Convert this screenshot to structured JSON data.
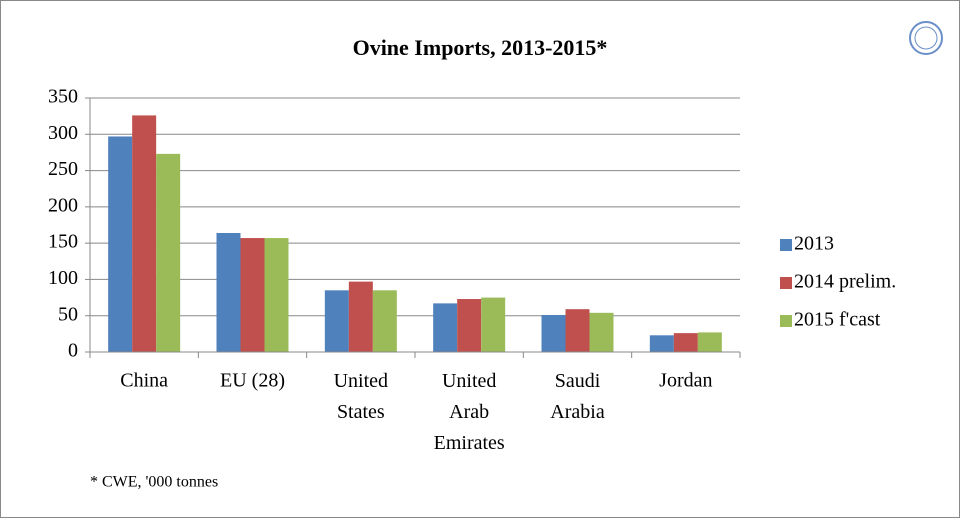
{
  "chart_data": {
    "type": "bar",
    "title": "Ovine Imports, 2013-2015*",
    "categories": [
      "China",
      "EU (28)",
      "United States",
      "United Arab Emirates",
      "Saudi Arabia",
      "Jordan"
    ],
    "series": [
      {
        "name": "2013",
        "color": "#4f81bd",
        "values": [
          297,
          164,
          85,
          67,
          51,
          23
        ]
      },
      {
        "name": "2014 prelim.",
        "color": "#c0504d",
        "values": [
          326,
          157,
          97,
          73,
          59,
          26
        ]
      },
      {
        "name": "2015 f'cast",
        "color": "#9bbb59",
        "values": [
          273,
          157,
          85,
          75,
          54,
          27
        ]
      }
    ],
    "ylim": [
      0,
      350
    ],
    "yticks": [
      0,
      50,
      100,
      150,
      200,
      250,
      300,
      350
    ],
    "grid": true,
    "legend": "right",
    "footnote": "* CWE, '000 tonnes"
  }
}
